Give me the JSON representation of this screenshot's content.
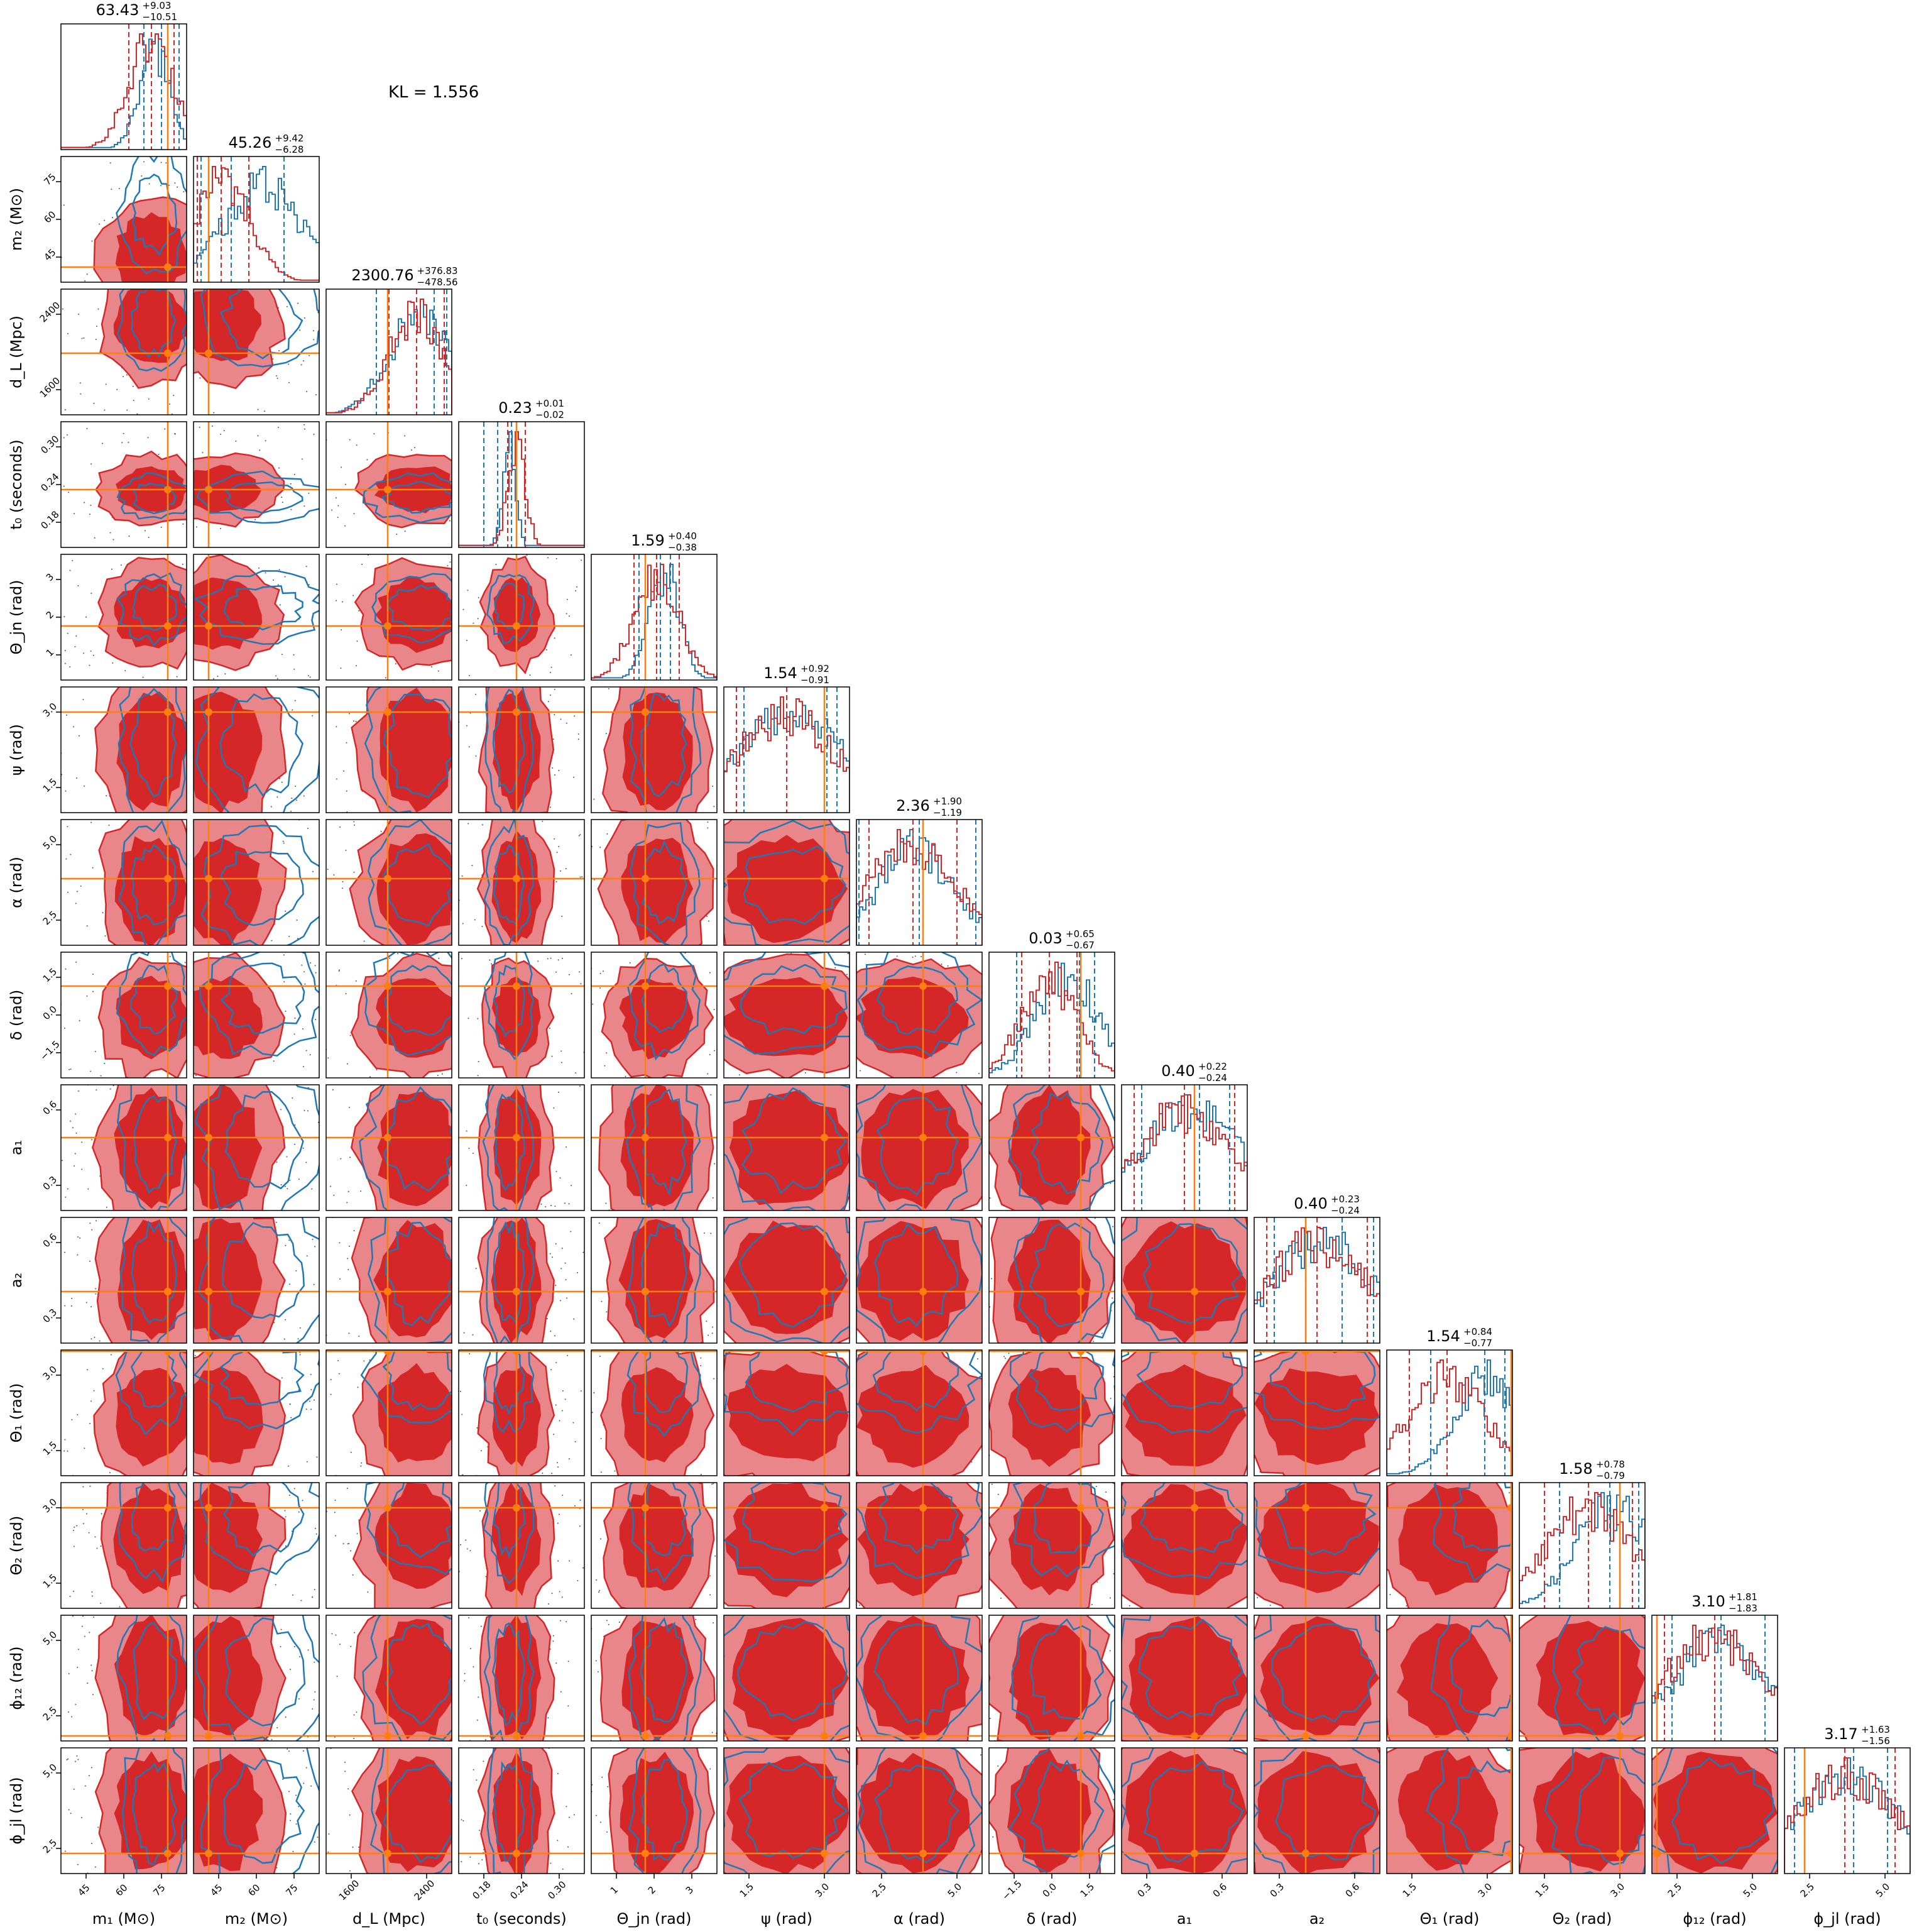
{
  "figure": {
    "kl_text": "KL = 1.556",
    "colors": {
      "posterior_a": "#d62728",
      "posterior_a_fill": "#e8868a",
      "posterior_b": "#1f77b4",
      "truth": "#ff7f0e",
      "frame": "#000000"
    }
  },
  "chart_data": {
    "type": "corner",
    "parameters": [
      {
        "key": "m1",
        "label": "m₁ (M⊙)",
        "ylabel": "",
        "xticks": [
          "45",
          "60",
          "75"
        ],
        "yticks": [],
        "title": {
          "value": "63.43",
          "plus": "+9.03",
          "minus": "−10.51"
        },
        "truth": 0.85
      },
      {
        "key": "m2",
        "label": "m₂ (M⊙)",
        "ylabel": "m₂ (M⊙)",
        "xticks": [
          "45",
          "60",
          "75"
        ],
        "yticks": [
          "45",
          "60",
          "75"
        ],
        "title": {
          "value": "45.26",
          "plus": "+9.42",
          "minus": "−6.28"
        },
        "truth": 0.12
      },
      {
        "key": "dL",
        "label": "d_L (Mpc)",
        "ylabel": "d_L (Mpc)",
        "xticks": [
          "1600",
          "2400"
        ],
        "yticks": [
          "1600",
          "2400"
        ],
        "title": {
          "value": "2300.76",
          "plus": "+376.83",
          "minus": "−478.56"
        },
        "truth": 0.49
      },
      {
        "key": "t0",
        "label": "t₀ (seconds)",
        "ylabel": "t₀ (seconds)",
        "xticks": [
          "0.18",
          "0.24",
          "0.30"
        ],
        "yticks": [
          "0.18",
          "0.24",
          "0.30"
        ],
        "title": {
          "value": "0.23",
          "plus": "+0.01",
          "minus": "−0.02"
        },
        "truth": 0.46
      },
      {
        "key": "thetajn",
        "label": "Θ_jn (rad)",
        "ylabel": "Θ_jn (rad)",
        "xticks": [
          "1",
          "2",
          "3"
        ],
        "yticks": [
          "1",
          "2",
          "3"
        ],
        "title": {
          "value": "1.59",
          "plus": "+0.40",
          "minus": "−0.38"
        },
        "truth": 0.43
      },
      {
        "key": "psi",
        "label": "ψ (rad)",
        "ylabel": "ψ (rad)",
        "xticks": [
          "1.5",
          "3.0"
        ],
        "yticks": [
          "1.5",
          "3.0"
        ],
        "title": {
          "value": "1.54",
          "plus": "+0.92",
          "minus": "−0.91"
        },
        "truth": 0.8
      },
      {
        "key": "alpha",
        "label": "α (rad)",
        "ylabel": "α (rad)",
        "xticks": [
          "2.5",
          "5.0"
        ],
        "yticks": [
          "2.5",
          "5.0"
        ],
        "title": {
          "value": "2.36",
          "plus": "+1.90",
          "minus": "−1.19"
        },
        "truth": 0.53
      },
      {
        "key": "delta",
        "label": "δ (rad)",
        "ylabel": "δ (rad)",
        "xticks": [
          "−1.5",
          "0.0",
          "1.5"
        ],
        "yticks": [
          "−1.5",
          "0.0",
          "1.5"
        ],
        "title": {
          "value": "0.03",
          "plus": "+0.65",
          "minus": "−0.67"
        },
        "truth": 0.73
      },
      {
        "key": "a1",
        "label": "a₁",
        "ylabel": "a₁",
        "xticks": [
          "0.3",
          "0.6"
        ],
        "yticks": [
          "0.3",
          "0.6"
        ],
        "title": {
          "value": "0.40",
          "plus": "+0.22",
          "minus": "−0.24"
        },
        "truth": 0.58
      },
      {
        "key": "a2",
        "label": "a₂",
        "ylabel": "a₂",
        "xticks": [
          "0.3",
          "0.6"
        ],
        "yticks": [
          "0.3",
          "0.6"
        ],
        "title": {
          "value": "0.40",
          "plus": "+0.23",
          "minus": "−0.24"
        },
        "truth": 0.41
      },
      {
        "key": "theta1",
        "label": "Θ₁ (rad)",
        "ylabel": "Θ₁ (rad)",
        "xticks": [
          "1.5",
          "3.0"
        ],
        "yticks": [
          "1.5",
          "3.0"
        ],
        "title": {
          "value": "1.54",
          "plus": "+0.84",
          "minus": "−0.77"
        },
        "truth": 0.99
      },
      {
        "key": "theta2",
        "label": "Θ₂ (rad)",
        "ylabel": "Θ₂ (rad)",
        "xticks": [
          "1.5",
          "3.0"
        ],
        "yticks": [
          "1.5",
          "3.0"
        ],
        "title": {
          "value": "1.58",
          "plus": "+0.78",
          "minus": "−0.79"
        },
        "truth": 0.8
      },
      {
        "key": "phi12",
        "label": "ϕ₁₂ (rad)",
        "ylabel": "ϕ₁₂ (rad)",
        "xticks": [
          "2.5",
          "5.0"
        ],
        "yticks": [
          "2.5",
          "5.0"
        ],
        "title": {
          "value": "3.10",
          "plus": "+1.81",
          "minus": "−1.83"
        },
        "truth": 0.04
      },
      {
        "key": "phijl",
        "label": "ϕ_jl (rad)",
        "ylabel": "ϕ_jl (rad)",
        "xticks": [
          "2.5",
          "5.0"
        ],
        "yticks": [
          "2.5",
          "5.0"
        ],
        "title": {
          "value": "3.17",
          "plus": "+1.63",
          "minus": "−1.56"
        },
        "truth": 0.16
      }
    ]
  }
}
